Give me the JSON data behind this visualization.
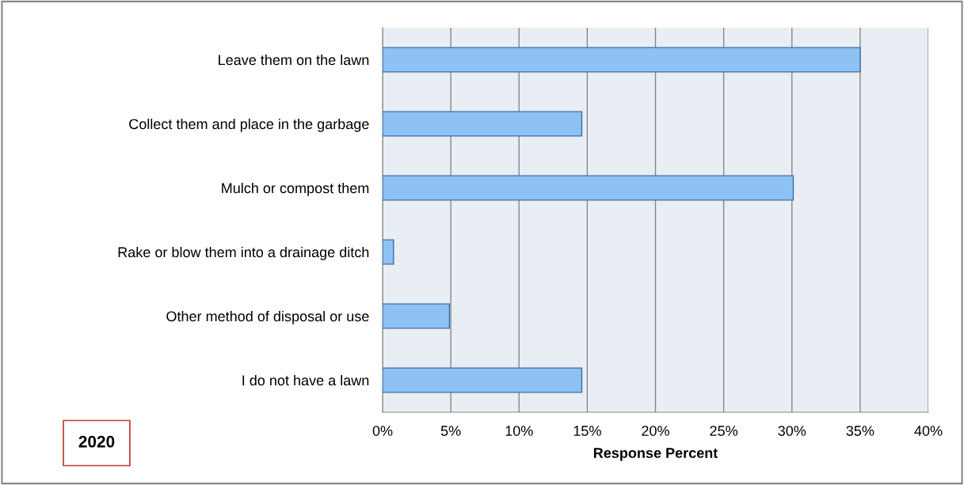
{
  "chart_data": {
    "type": "bar",
    "orientation": "horizontal",
    "xlabel": "Response Percent",
    "categories": [
      "Leave them on the lawn",
      "Collect them and place in the garbage",
      "Mulch or compost them",
      "Rake or blow them into a drainage ditch",
      "Other method of disposal or use",
      "I do not have a lawn"
    ],
    "values": [
      35,
      14.6,
      30.1,
      0.8,
      4.9,
      14.6
    ],
    "color": "#8ec2f4",
    "xlim": [
      0,
      40
    ],
    "xticks": [
      {
        "value": 0,
        "label": "0%"
      },
      {
        "value": 5,
        "label": "5%"
      },
      {
        "value": 10,
        "label": "10%"
      },
      {
        "value": 15,
        "label": "15%"
      },
      {
        "value": 20,
        "label": "20%"
      },
      {
        "value": 25,
        "label": "25%"
      },
      {
        "value": 30,
        "label": "30%"
      },
      {
        "value": 35,
        "label": "35%"
      },
      {
        "value": 40,
        "label": "40%"
      }
    ],
    "grid": "x",
    "annotations": [
      "2020"
    ]
  }
}
